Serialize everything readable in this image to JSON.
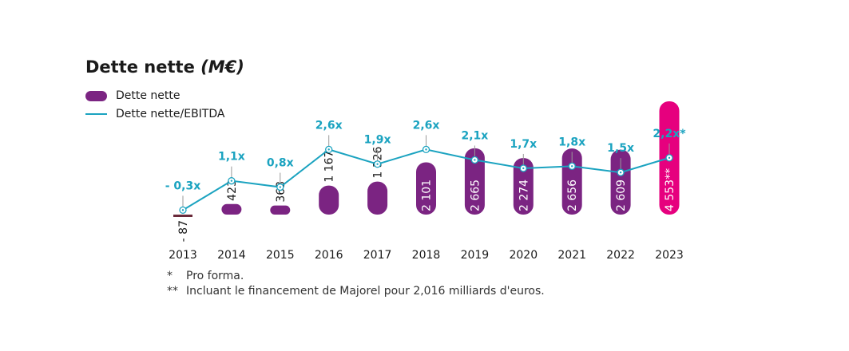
{
  "chart_data": {
    "type": "bar+line",
    "title": "Dette nette",
    "title_unit": "(M€)",
    "categories": [
      "2013",
      "2014",
      "2015",
      "2016",
      "2017",
      "2018",
      "2019",
      "2020",
      "2021",
      "2022",
      "2023"
    ],
    "series": [
      {
        "name": "Dette nette",
        "type": "bar",
        "values": [
          -87,
          423,
          363,
          1167,
          1326,
          2101,
          2665,
          2274,
          2656,
          2609,
          4553
        ],
        "labels": [
          "- 87",
          "423",
          "363",
          "1 167",
          "1 326",
          "2 101",
          "2 665",
          "2 274",
          "2 656",
          "2 609",
          "4 553**"
        ],
        "color": "#7b2482",
        "highlight_color": "#e6007e"
      },
      {
        "name": "Dette nette/EBITDA",
        "type": "line",
        "values": [
          -0.3,
          1.1,
          0.8,
          2.6,
          1.9,
          2.6,
          2.1,
          1.7,
          1.8,
          1.5,
          2.2
        ],
        "labels": [
          "- 0,3x",
          "1,1x",
          "0,8x",
          "2,6x",
          "1,9x",
          "2,6x",
          "2,1x",
          "1,7x",
          "1,8x",
          "1,5x",
          "2,2x*"
        ],
        "color": "#1ba3c0"
      }
    ],
    "grid": false,
    "legend_position": "top-left"
  },
  "footnotes": [
    {
      "marker": "*",
      "text": "Pro forma."
    },
    {
      "marker": "**",
      "text": "Incluant le financement de Majorel pour 2,016 milliards d'euros."
    }
  ]
}
